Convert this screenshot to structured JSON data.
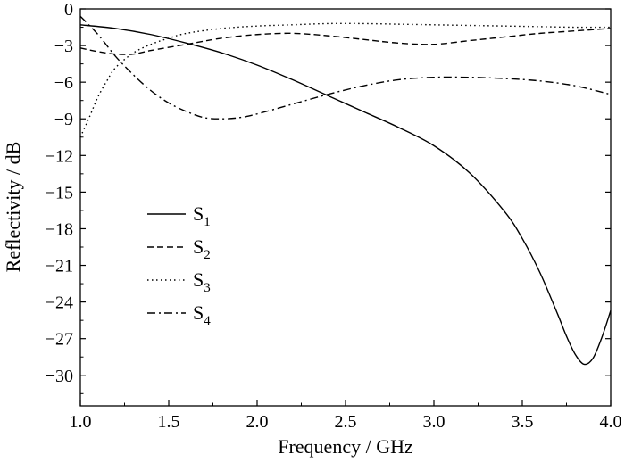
{
  "chart_data": {
    "type": "line",
    "title": "",
    "xlabel": "Frequency / GHz",
    "ylabel": "Reflectivity / dB",
    "xlim": [
      1.0,
      4.0
    ],
    "ylim": [
      -32.5,
      0
    ],
    "xticks": [
      "1.0",
      "1.5",
      "2.0",
      "2.5",
      "3.0",
      "3.5",
      "4.0"
    ],
    "yticks": [
      "0",
      "−3",
      "−6",
      "−9",
      "−12",
      "−15",
      "−18",
      "−21",
      "−24",
      "−27",
      "−30"
    ],
    "grid": false,
    "legend_position": "left-middle",
    "series": [
      {
        "name": "S",
        "subscript": "1",
        "style": "solid",
        "x": [
          1.0,
          1.2,
          1.4,
          1.6,
          1.8,
          2.0,
          2.2,
          2.4,
          2.6,
          2.8,
          3.0,
          3.2,
          3.4,
          3.5,
          3.6,
          3.7,
          3.75,
          3.8,
          3.85,
          3.9,
          3.95,
          4.0
        ],
        "y": [
          -1.3,
          -1.6,
          -2.1,
          -2.8,
          -3.6,
          -4.6,
          -5.8,
          -7.1,
          -8.4,
          -9.7,
          -11.2,
          -13.4,
          -16.6,
          -18.8,
          -21.6,
          -25.0,
          -26.8,
          -28.3,
          -29.1,
          -28.6,
          -26.9,
          -24.7
        ]
      },
      {
        "name": "S",
        "subscript": "2",
        "style": "dashed",
        "x": [
          1.0,
          1.1,
          1.2,
          1.3,
          1.4,
          1.6,
          1.8,
          2.0,
          2.2,
          2.4,
          2.6,
          2.8,
          3.0,
          3.2,
          3.4,
          3.6,
          3.8,
          4.0
        ],
        "y": [
          -3.2,
          -3.5,
          -3.7,
          -3.7,
          -3.4,
          -2.9,
          -2.4,
          -2.1,
          -2.0,
          -2.2,
          -2.5,
          -2.8,
          -2.9,
          -2.6,
          -2.3,
          -2.0,
          -1.8,
          -1.6
        ]
      },
      {
        "name": "S",
        "subscript": "3",
        "style": "dotted",
        "x": [
          1.0,
          1.05,
          1.1,
          1.15,
          1.2,
          1.3,
          1.4,
          1.5,
          1.6,
          1.8,
          2.0,
          2.2,
          2.4,
          2.6,
          2.8,
          3.0,
          3.2,
          3.4,
          3.6,
          3.8,
          4.0
        ],
        "y": [
          -10.5,
          -8.9,
          -7.2,
          -5.9,
          -4.8,
          -3.6,
          -2.9,
          -2.4,
          -2.0,
          -1.6,
          -1.4,
          -1.3,
          -1.2,
          -1.2,
          -1.25,
          -1.3,
          -1.35,
          -1.4,
          -1.45,
          -1.5,
          -1.5
        ]
      },
      {
        "name": "S",
        "subscript": "4",
        "style": "dashdot",
        "x": [
          1.0,
          1.1,
          1.2,
          1.3,
          1.4,
          1.5,
          1.6,
          1.7,
          1.8,
          1.9,
          2.0,
          2.2,
          2.4,
          2.6,
          2.8,
          3.0,
          3.2,
          3.4,
          3.6,
          3.8,
          4.0
        ],
        "y": [
          -0.6,
          -2.1,
          -3.9,
          -5.4,
          -6.7,
          -7.7,
          -8.4,
          -8.9,
          -9.0,
          -8.9,
          -8.6,
          -7.8,
          -7.0,
          -6.3,
          -5.8,
          -5.6,
          -5.6,
          -5.7,
          -5.9,
          -6.3,
          -7.0
        ]
      }
    ]
  }
}
